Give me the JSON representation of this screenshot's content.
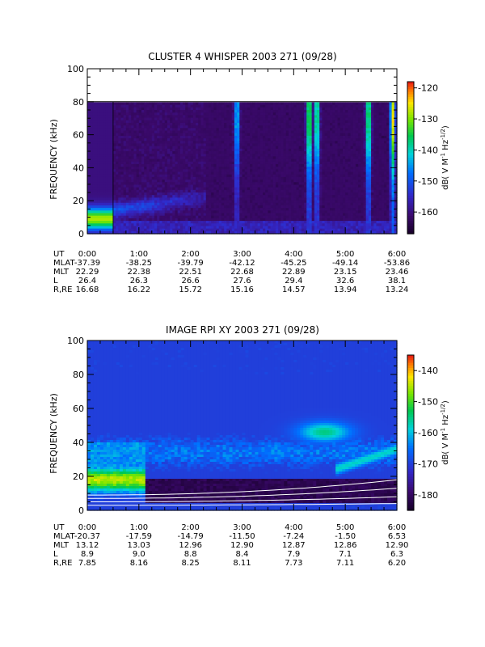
{
  "chart_data": [
    {
      "type": "heatmap",
      "title": "CLUSTER 4 WHISPER 2003 271 (09/28)",
      "ylabel": "FREQUENCY (kHz)",
      "ylim": [
        0,
        100
      ],
      "yticks": [
        "0",
        "20",
        "40",
        "60",
        "80",
        "100"
      ],
      "xlim_hours": [
        0,
        6
      ],
      "xticks": [
        "0:00",
        "1:00",
        "2:00",
        "3:00",
        "4:00",
        "5:00",
        "6:00"
      ],
      "data_top_khz": 80,
      "colorbar": {
        "label_main": "dB( V M",
        "label_sup1": "-1",
        "label_mid": " Hz",
        "label_sup2": "-1/2",
        "label_end": ")",
        "range": [
          -167,
          -118
        ],
        "ticks": [
          "-120",
          "-130",
          "-140",
          "-150",
          "-160"
        ]
      },
      "ephemeris": {
        "labels": [
          "UT",
          "MLAT",
          "MLT",
          "L",
          "R,RE"
        ],
        "rows": [
          [
            "0:00",
            "1:00",
            "2:00",
            "3:00",
            "4:00",
            "5:00",
            "6:00"
          ],
          [
            "-37.39",
            "-38.25",
            "-39.79",
            "-42.12",
            "-45.25",
            "-49.14",
            "-53.86"
          ],
          [
            "22.29",
            "22.38",
            "22.51",
            "22.68",
            "22.89",
            "23.15",
            "23.46"
          ],
          [
            "26.4",
            "26.3",
            "26.6",
            "27.6",
            "29.4",
            "32.6",
            "38.1"
          ],
          [
            "16.68",
            "16.22",
            "15.72",
            "15.16",
            "14.57",
            "13.94",
            "13.24"
          ]
        ]
      },
      "features": [
        {
          "kind": "band",
          "t0": 0.0,
          "t1": 0.5,
          "f_low": 4,
          "f_high": 14,
          "peak_db": -128
        },
        {
          "kind": "band_tail",
          "t0": 0.5,
          "t1": 2.3,
          "f_start": 14,
          "f_end": 22,
          "peak_db": -150
        },
        {
          "kind": "burst",
          "t": 2.9,
          "db": -140
        },
        {
          "kind": "burst",
          "t": 4.3,
          "db": -128
        },
        {
          "kind": "burst",
          "t": 4.45,
          "db": -132
        },
        {
          "kind": "burst",
          "t": 5.45,
          "db": -130
        },
        {
          "kind": "burst",
          "t": 5.92,
          "db": -125
        }
      ]
    },
    {
      "type": "heatmap",
      "title": "IMAGE RPI XY 2003 271 (09/28)",
      "ylabel": "FREQUENCY (kHz)",
      "ylim": [
        0,
        100
      ],
      "yticks": [
        "0",
        "20",
        "40",
        "60",
        "80",
        "100"
      ],
      "xlim_hours": [
        0,
        6
      ],
      "xticks": [
        "0:00",
        "1:00",
        "2:00",
        "3:00",
        "4:00",
        "5:00",
        "6:00"
      ],
      "colorbar": {
        "label_main": "dB( V M",
        "label_sup1": "-1",
        "label_mid": " Hz",
        "label_sup2": "-1/2",
        "label_end": ")",
        "range": [
          -185,
          -135
        ],
        "ticks": [
          "-140",
          "-150",
          "-160",
          "-170",
          "-180"
        ]
      },
      "ephemeris": {
        "labels": [
          "UT",
          "MLAT",
          "MLT",
          "L",
          "R,RE"
        ],
        "rows": [
          [
            "0:00",
            "1:00",
            "2:00",
            "3:00",
            "4:00",
            "5:00",
            "6:00"
          ],
          [
            "-20.37",
            "-17.59",
            "-14.79",
            "-11.50",
            "-7.24",
            "-1.50",
            "6.53"
          ],
          [
            "13.12",
            "13.03",
            "12.96",
            "12.90",
            "12.87",
            "12.86",
            "12.90"
          ],
          [
            "8.9",
            "9.0",
            "8.8",
            "8.4",
            "7.9",
            "7.1",
            "6.3"
          ],
          [
            "7.85",
            "8.16",
            "8.25",
            "8.11",
            "7.73",
            "7.11",
            "6.20"
          ]
        ]
      },
      "features": [
        {
          "kind": "strong_band",
          "t0": 0.0,
          "t1": 1.1,
          "f_low": 14,
          "f_high": 24,
          "peak_db": -145
        },
        {
          "kind": "continuum",
          "t0": 0.0,
          "t1": 6.0,
          "f_low": 20,
          "f_high": 45,
          "peak_db": -165
        },
        {
          "kind": "hump",
          "t": 4.6,
          "f": 46,
          "db": -155
        },
        {
          "kind": "rising_band",
          "t0": 4.8,
          "t1": 6.0,
          "f_start": 24,
          "f_end": 36,
          "db": -158
        }
      ],
      "white_curves_khz_at_0h_6h": [
        [
          3,
          4
        ],
        [
          5,
          8
        ],
        [
          7,
          13
        ],
        [
          9,
          18
        ]
      ]
    }
  ]
}
